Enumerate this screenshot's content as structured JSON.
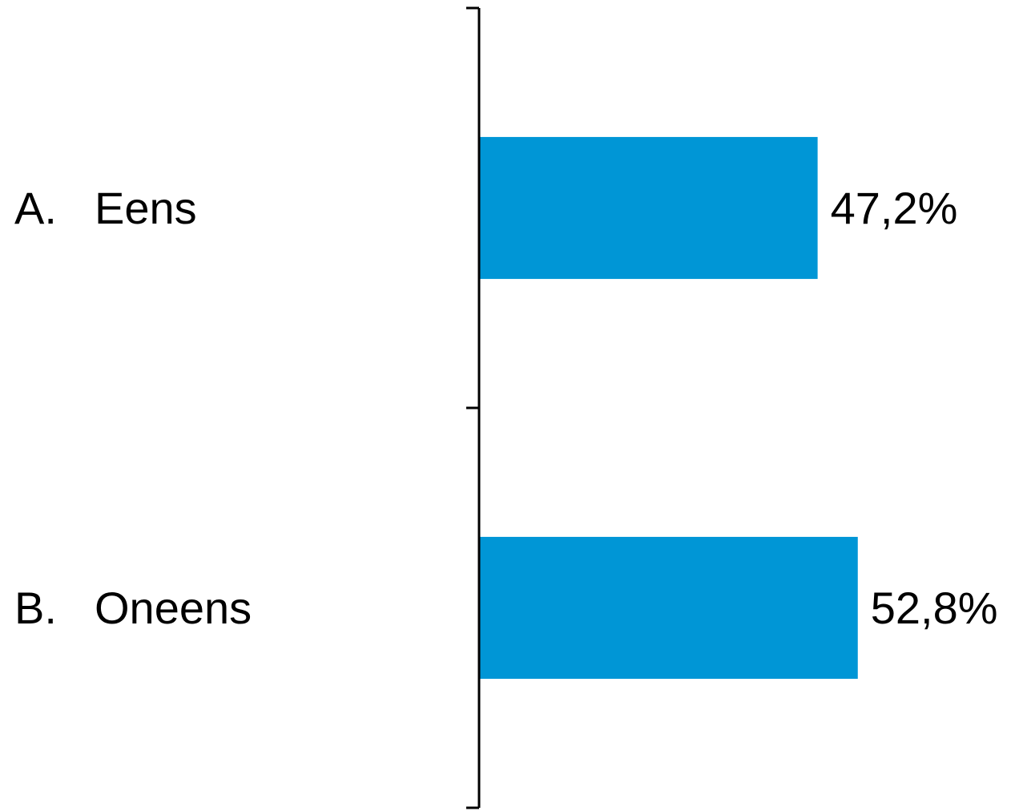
{
  "chart_data": {
    "type": "bar",
    "orientation": "horizontal",
    "categories": [
      {
        "letter": "A.",
        "label": "Eens"
      },
      {
        "letter": "B.",
        "label": "Oneens"
      }
    ],
    "values": [
      47.2,
      52.8
    ],
    "value_labels": [
      "47,2%",
      "52,8%"
    ],
    "xlim": [
      0,
      65
    ],
    "title": "",
    "xlabel": "",
    "ylabel": "",
    "grid": false,
    "legend": "none",
    "bar_color": "#0096D6",
    "axis_color": "#000000"
  }
}
